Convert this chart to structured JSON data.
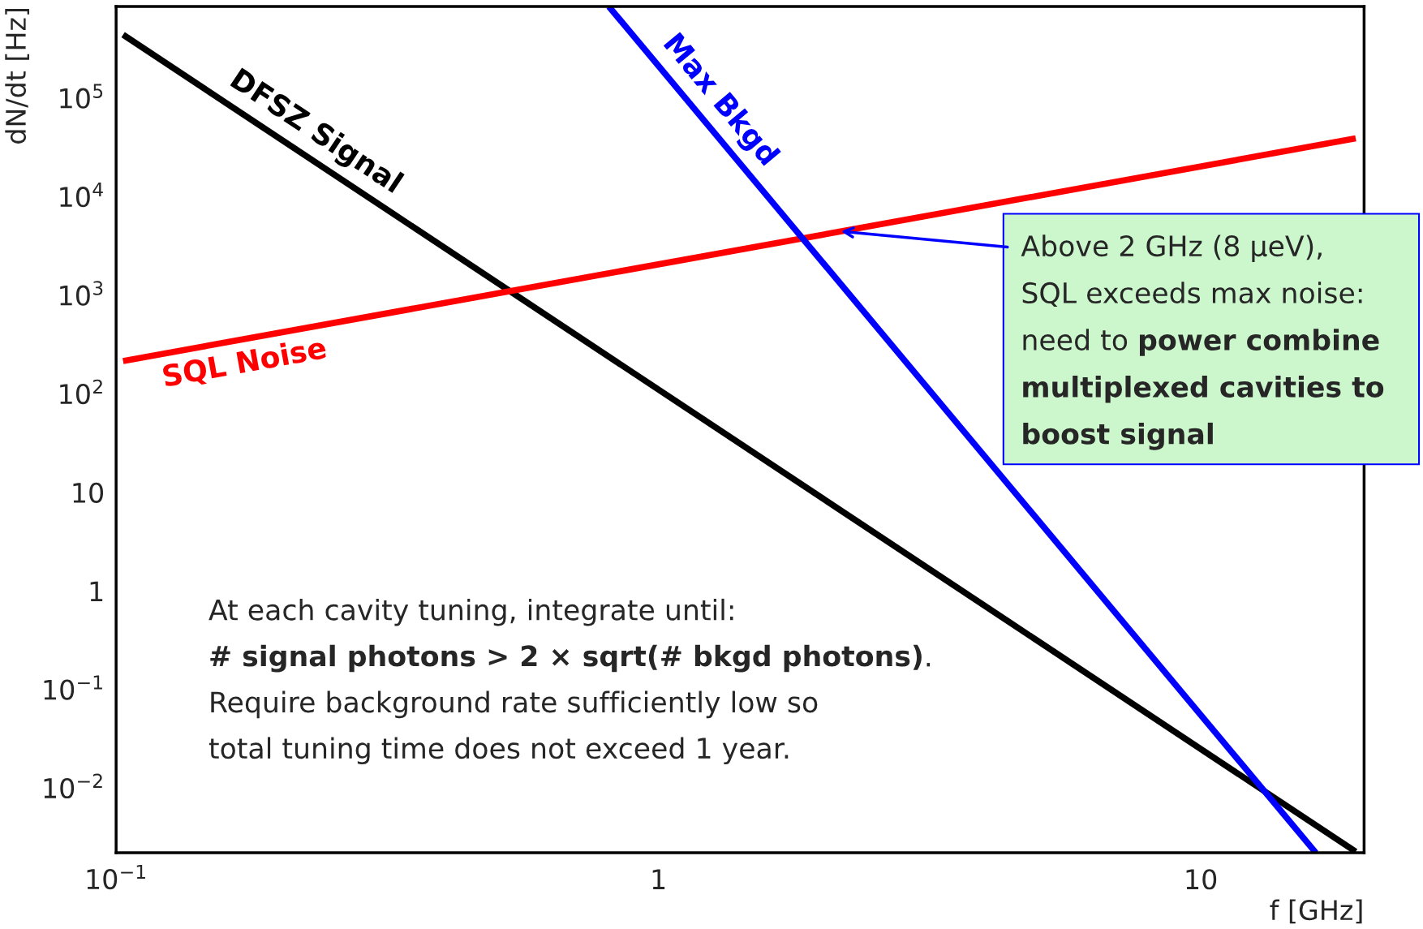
{
  "chart_data": {
    "type": "line",
    "xlabel": "f [GHz]",
    "ylabel": "dN/dt [Hz]",
    "log": "xy",
    "legend": false,
    "grid": false,
    "xlim": [
      0.1,
      20
    ],
    "ylim": [
      0.0022,
      850000
    ],
    "xticks": [
      {
        "value": 0.1,
        "label": "10$^{−1}$"
      },
      1,
      10
    ],
    "yticks": [
      {
        "value": 0.01,
        "label": "10$^{−2}$"
      },
      {
        "value": 0.1,
        "label": "10$^{−1}$"
      },
      1,
      10,
      {
        "value": 100,
        "label": "10$^{2}$"
      },
      {
        "value": 1000,
        "label": "10$^{3}$"
      },
      {
        "value": 10000,
        "label": "10$^{4}$"
      },
      {
        "value": 100000,
        "label": "10$^{5}$"
      }
    ],
    "series": [
      {
        "name": "DFSZ Signal",
        "color": "#000000",
        "x": [
          0.103,
          19.3
        ],
        "values": [
          440000,
          0.00226
        ]
      },
      {
        "name": "SQL Noise",
        "color": "#ff0000",
        "x": [
          0.103,
          19.3
        ],
        "values": [
          215,
          39000
        ]
      },
      {
        "name": "Max Bkgd",
        "color": "#0000ff",
        "x": [
          0.81,
          16.3
        ],
        "values": [
          850000,
          0.0022
        ]
      }
    ],
    "annotations": [
      {
        "text": "Above 2 GHz (8 µeV),\nSQL exceeds max noise:\nneed to ",
        "x": 2.17,
        "y": 4450
      },
      "power combine\nmultiplexed cavities to\nboost signal",
      "At each cavity tuning, integrate until:\n",
      "# signal photons > 2 × sqrt(# bkgd photons)",
      ".\nRequire background rate sufficiently low so\ntotal tuning time does not exceed 1 year."
    ]
  }
}
